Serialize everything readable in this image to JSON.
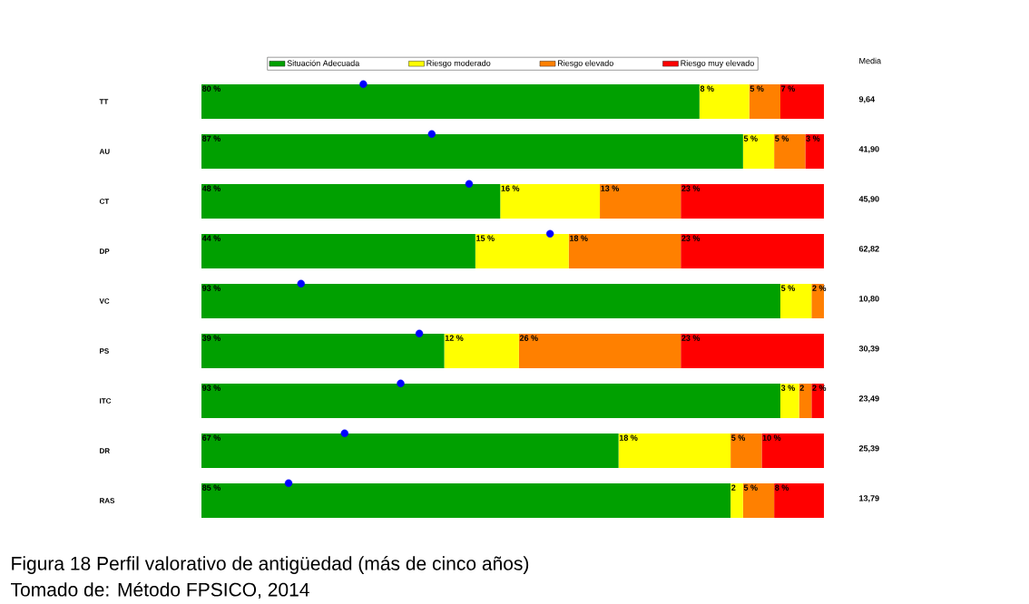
{
  "chart_data": {
    "type": "bar",
    "orientation": "horizontal",
    "stacked": true,
    "legend": "top",
    "tick_labels": "y",
    "categories": [
      "TT",
      "AU",
      "CT",
      "DP",
      "VC",
      "PS",
      "ITC",
      "DR",
      "RAS"
    ],
    "series": [
      {
        "name": "Situación Adecuada",
        "color": "#00a000",
        "values": [
          80,
          87,
          48,
          44,
          93,
          39,
          93,
          67,
          85
        ],
        "value_labels": [
          "80 %",
          "87 %",
          "48 %",
          "44 %",
          "93 %",
          "39 %",
          "93 %",
          "67 %",
          "85 %"
        ]
      },
      {
        "name": "Riesgo moderado",
        "color": "#ffff00",
        "values": [
          8,
          5,
          16,
          15,
          5,
          12,
          3,
          18,
          2
        ],
        "value_labels": [
          "8 %",
          "5 %",
          "16 %",
          "15 %",
          "5 %",
          "12 %",
          "3 %",
          "18 %",
          "2"
        ]
      },
      {
        "name": "Riesgo elevado",
        "color": "#ff8000",
        "values": [
          5,
          5,
          13,
          18,
          2,
          26,
          2,
          5,
          5
        ],
        "value_labels": [
          "5 %",
          "5 %",
          "13 %",
          "18 %",
          "2 %",
          "26 %",
          "2",
          "5 %",
          "5 %"
        ]
      },
      {
        "name": "Riesgo muy elevado",
        "color": "#ff0000",
        "values": [
          7,
          3,
          23,
          23,
          null,
          23,
          2,
          10,
          8
        ],
        "value_labels": [
          "7 %",
          "3 %",
          "23 %",
          "23 %",
          null,
          "23 %",
          "2 %",
          "10 %",
          "8 %"
        ]
      },
      {
        "type": "scatter",
        "marker": "circle",
        "color": "#0000ff",
        "values": [
          26,
          37,
          43,
          56,
          16,
          35,
          32,
          23,
          14
        ]
      }
    ],
    "annotations": [
      "Media",
      "9,64",
      "41,90",
      "45,90",
      "62,82",
      "10,80",
      "30,39",
      "23,49",
      "25,39",
      "13,79",
      "Figura 18 Perfil valorativo de antigüedad (más de cinco años)",
      "Tomado de: Método FPSICO, 2014"
    ]
  }
}
